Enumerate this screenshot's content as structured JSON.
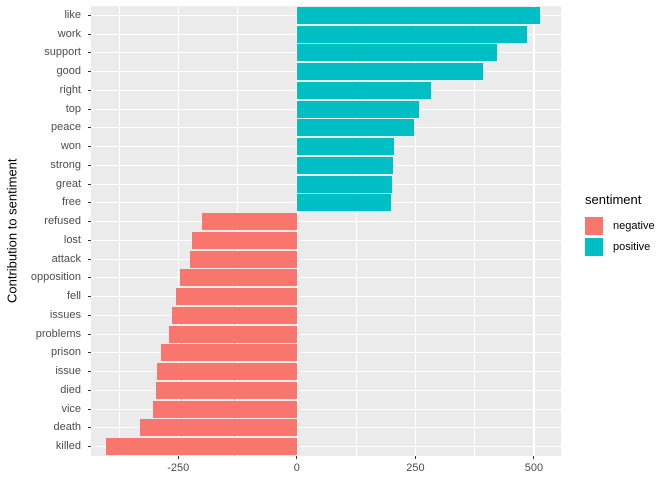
{
  "colors": {
    "negative": "#F8766D",
    "positive": "#00BFC4",
    "panel_bg": "#EBEBEB",
    "grid": "#FFFFFF",
    "tick_text": "#4D4D4D",
    "axis_title_text": "#000000",
    "tick_mark": "#333333"
  },
  "legend": {
    "title": "sentiment",
    "items": [
      {
        "label": "negative",
        "color_key": "negative"
      },
      {
        "label": "positive",
        "color_key": "positive"
      }
    ]
  },
  "chart_data": {
    "type": "bar",
    "orientation": "horizontal",
    "title": "",
    "xlabel": "",
    "ylabel": "Contribution to sentiment",
    "xlim": [
      -434,
      557
    ],
    "x_major_ticks": [
      -250,
      0,
      250,
      500
    ],
    "x_minor_gridlines": [
      -375,
      -125,
      125,
      375
    ],
    "grid": true,
    "legend_position": "right",
    "bar_width_fraction": 0.9,
    "bars": [
      {
        "category": "like",
        "value": 512,
        "sentiment": "positive"
      },
      {
        "category": "work",
        "value": 485,
        "sentiment": "positive"
      },
      {
        "category": "support",
        "value": 423,
        "sentiment": "positive"
      },
      {
        "category": "good",
        "value": 392,
        "sentiment": "positive"
      },
      {
        "category": "right",
        "value": 283,
        "sentiment": "positive"
      },
      {
        "category": "top",
        "value": 257,
        "sentiment": "positive"
      },
      {
        "category": "peace",
        "value": 248,
        "sentiment": "positive"
      },
      {
        "category": "won",
        "value": 204,
        "sentiment": "positive"
      },
      {
        "category": "strong",
        "value": 203,
        "sentiment": "positive"
      },
      {
        "category": "great",
        "value": 201,
        "sentiment": "positive"
      },
      {
        "category": "free",
        "value": 199,
        "sentiment": "positive"
      },
      {
        "category": "refused",
        "value": -200,
        "sentiment": "negative"
      },
      {
        "category": "lost",
        "value": -221,
        "sentiment": "negative"
      },
      {
        "category": "attack",
        "value": -225,
        "sentiment": "negative"
      },
      {
        "category": "opposition",
        "value": -246,
        "sentiment": "negative"
      },
      {
        "category": "fell",
        "value": -255,
        "sentiment": "negative"
      },
      {
        "category": "issues",
        "value": -263,
        "sentiment": "negative"
      },
      {
        "category": "problems",
        "value": -270,
        "sentiment": "negative"
      },
      {
        "category": "prison",
        "value": -286,
        "sentiment": "negative"
      },
      {
        "category": "issue",
        "value": -295,
        "sentiment": "negative"
      },
      {
        "category": "died",
        "value": -297,
        "sentiment": "negative"
      },
      {
        "category": "vice",
        "value": -303,
        "sentiment": "negative"
      },
      {
        "category": "death",
        "value": -330,
        "sentiment": "negative"
      },
      {
        "category": "killed",
        "value": -402,
        "sentiment": "negative"
      }
    ]
  }
}
